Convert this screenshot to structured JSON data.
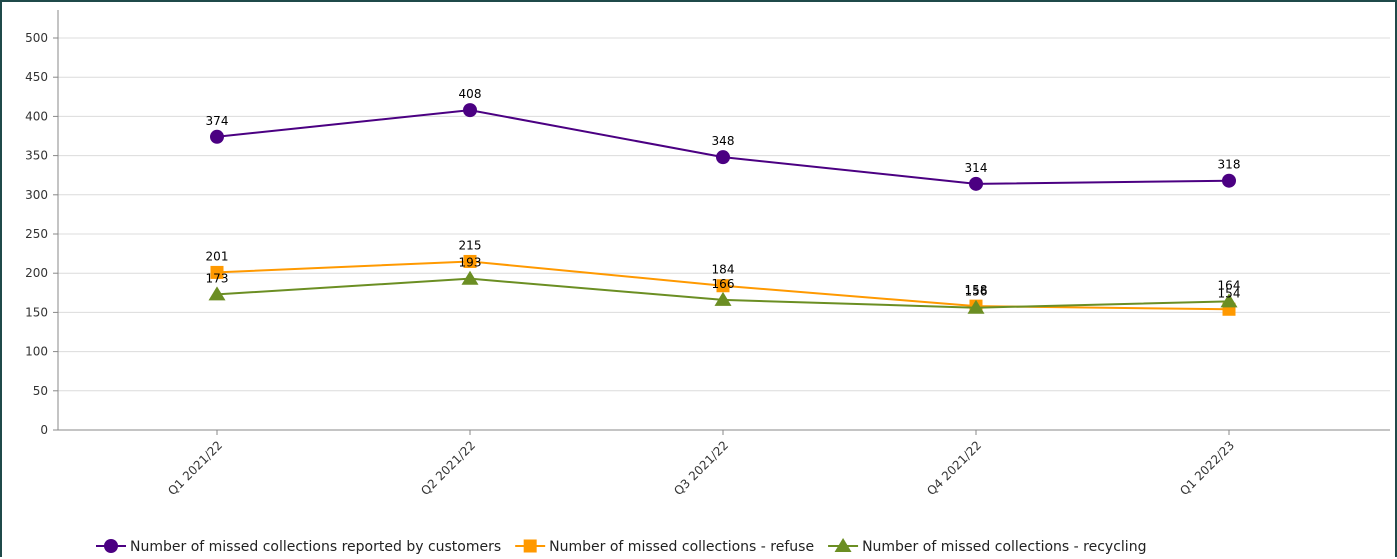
{
  "chart_data": {
    "type": "line",
    "categories": [
      "Q1 2021/22",
      "Q2 2021/22",
      "Q3 2021/22",
      "Q4 2021/22",
      "Q1 2022/23"
    ],
    "series": [
      {
        "name": "Number of missed collections reported by customers",
        "values": [
          374,
          408,
          348,
          314,
          318
        ],
        "color": "#4b0082",
        "marker": "circle"
      },
      {
        "name": "Number of missed collections - refuse",
        "values": [
          201,
          215,
          184,
          158,
          154
        ],
        "color": "#ff9900",
        "marker": "square"
      },
      {
        "name": "Number of missed collections - recycling",
        "values": [
          173,
          193,
          166,
          156,
          164
        ],
        "color": "#6b8e23",
        "marker": "triangle"
      }
    ],
    "ylim": [
      0,
      500
    ],
    "yticks": [
      0,
      50,
      100,
      150,
      200,
      250,
      300,
      350,
      400,
      450,
      500
    ],
    "grid": true,
    "legend_position": "bottom"
  }
}
